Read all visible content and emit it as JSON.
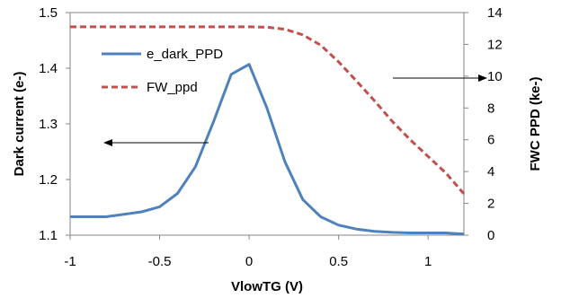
{
  "chart_data": {
    "type": "line",
    "title": "",
    "xlabel": "VlowTG (V)",
    "ylabel": "Dark current (e-)",
    "y2label": "FWC PPD (ke-)",
    "xlim": [
      -1,
      1.2
    ],
    "ylim": [
      1.1,
      1.5
    ],
    "y2lim": [
      0,
      14
    ],
    "x_ticks": [
      "-1",
      "-0.5",
      "0",
      "0.5",
      "1"
    ],
    "y_ticks": [
      "1.1",
      "1.2",
      "1.3",
      "1.4",
      "1.5"
    ],
    "y2_ticks": [
      "0",
      "2",
      "4",
      "6",
      "8",
      "10",
      "12",
      "14"
    ],
    "grid": false,
    "legend_position": "top-left",
    "series": [
      {
        "name": "e_dark_PPD",
        "axis": "left",
        "color": "#4F81BD",
        "style": "solid",
        "x": [
          -1,
          -0.8,
          -0.6,
          -0.5,
          -0.4,
          -0.3,
          -0.2,
          -0.1,
          0,
          0.1,
          0.2,
          0.3,
          0.4,
          0.5,
          0.6,
          0.7,
          0.8,
          0.9,
          1.0,
          1.1,
          1.2
        ],
        "y": [
          1.133,
          1.133,
          1.142,
          1.151,
          1.175,
          1.223,
          1.303,
          1.389,
          1.407,
          1.328,
          1.232,
          1.164,
          1.133,
          1.118,
          1.111,
          1.107,
          1.105,
          1.104,
          1.104,
          1.104,
          1.102
        ]
      },
      {
        "name": "FW_ppd",
        "axis": "right",
        "color": "#C0504D",
        "style": "dashed",
        "x": [
          -1,
          -0.8,
          -0.6,
          -0.4,
          -0.2,
          0,
          0.1,
          0.2,
          0.3,
          0.4,
          0.5,
          0.6,
          0.7,
          0.8,
          0.9,
          1.0,
          1.1,
          1.2
        ],
        "y": [
          13.1,
          13.1,
          13.1,
          13.1,
          13.1,
          13.1,
          13.08,
          12.95,
          12.6,
          11.95,
          10.9,
          9.7,
          8.45,
          7.15,
          6.0,
          4.95,
          3.9,
          2.6
        ]
      }
    ]
  }
}
